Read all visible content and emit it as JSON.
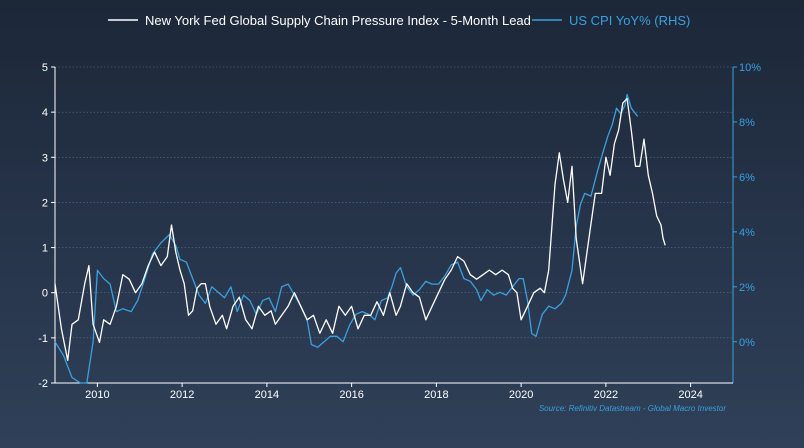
{
  "chart_data": {
    "type": "line",
    "legend": {
      "placement": "top",
      "gscpi_label": "New York Fed Global Supply Chain Pressure Index - 5-Month Lead",
      "cpi_label": "US CPI YoY% (RHS)"
    },
    "source": "Source: Refinitiv Datastream - Global Macro Investor",
    "colors": {
      "gscpi": "#ffffff",
      "cpi": "#3aa0e0",
      "grid": "#5a6f8c"
    },
    "x_range": [
      2009.0,
      2025.0
    ],
    "x_ticks": [
      "2010",
      "2012",
      "2014",
      "2016",
      "2018",
      "2020",
      "2022",
      "2024"
    ],
    "y_left": {
      "range": [
        -2,
        5
      ],
      "ticks": [
        "-2",
        "-1",
        "0",
        "1",
        "2",
        "3",
        "4",
        "5"
      ]
    },
    "y_right": {
      "range": [
        -1.5,
        10
      ],
      "ticks": [
        "0%",
        "2%",
        "4%",
        "6%",
        "8%",
        "10%"
      ]
    },
    "grid": true,
    "series": [
      {
        "name": "New York Fed Global Supply Chain Pressure Index - 5-Month Lead",
        "axis": "left",
        "points": [
          [
            2009.0,
            0.2
          ],
          [
            2009.15,
            -0.8
          ],
          [
            2009.3,
            -1.5
          ],
          [
            2009.4,
            -0.7
          ],
          [
            2009.55,
            -0.6
          ],
          [
            2009.7,
            0.2
          ],
          [
            2009.8,
            0.6
          ],
          [
            2009.9,
            -0.7
          ],
          [
            2010.05,
            -1.1
          ],
          [
            2010.15,
            -0.6
          ],
          [
            2010.3,
            -0.7
          ],
          [
            2010.45,
            -0.3
          ],
          [
            2010.6,
            0.4
          ],
          [
            2010.75,
            0.3
          ],
          [
            2010.9,
            0.0
          ],
          [
            2011.05,
            0.2
          ],
          [
            2011.2,
            0.6
          ],
          [
            2011.35,
            0.9
          ],
          [
            2011.5,
            0.6
          ],
          [
            2011.65,
            0.8
          ],
          [
            2011.75,
            1.5
          ],
          [
            2011.85,
            0.9
          ],
          [
            2011.95,
            0.5
          ],
          [
            2012.05,
            0.2
          ],
          [
            2012.15,
            -0.5
          ],
          [
            2012.25,
            -0.4
          ],
          [
            2012.35,
            0.1
          ],
          [
            2012.45,
            0.2
          ],
          [
            2012.55,
            0.2
          ],
          [
            2012.65,
            -0.3
          ],
          [
            2012.8,
            -0.7
          ],
          [
            2012.95,
            -0.5
          ],
          [
            2013.05,
            -0.8
          ],
          [
            2013.2,
            -0.3
          ],
          [
            2013.35,
            -0.1
          ],
          [
            2013.5,
            -0.6
          ],
          [
            2013.65,
            -0.8
          ],
          [
            2013.8,
            -0.3
          ],
          [
            2013.95,
            -0.5
          ],
          [
            2014.1,
            -0.4
          ],
          [
            2014.2,
            -0.7
          ],
          [
            2014.35,
            -0.5
          ],
          [
            2014.5,
            -0.3
          ],
          [
            2014.65,
            0.0
          ],
          [
            2014.8,
            -0.3
          ],
          [
            2014.95,
            -0.6
          ],
          [
            2015.1,
            -0.5
          ],
          [
            2015.25,
            -0.9
          ],
          [
            2015.4,
            -0.6
          ],
          [
            2015.55,
            -0.9
          ],
          [
            2015.7,
            -0.3
          ],
          [
            2015.85,
            -0.5
          ],
          [
            2016.0,
            -0.3
          ],
          [
            2016.15,
            -0.8
          ],
          [
            2016.3,
            -0.5
          ],
          [
            2016.45,
            -0.5
          ],
          [
            2016.6,
            -0.2
          ],
          [
            2016.75,
            -0.5
          ],
          [
            2016.9,
            0.0
          ],
          [
            2017.05,
            -0.5
          ],
          [
            2017.15,
            -0.3
          ],
          [
            2017.3,
            0.2
          ],
          [
            2017.45,
            0.0
          ],
          [
            2017.6,
            -0.1
          ],
          [
            2017.75,
            -0.6
          ],
          [
            2017.9,
            -0.3
          ],
          [
            2018.05,
            0.0
          ],
          [
            2018.2,
            0.3
          ],
          [
            2018.35,
            0.5
          ],
          [
            2018.5,
            0.8
          ],
          [
            2018.65,
            0.7
          ],
          [
            2018.8,
            0.4
          ],
          [
            2018.95,
            0.3
          ],
          [
            2019.1,
            0.4
          ],
          [
            2019.25,
            0.5
          ],
          [
            2019.4,
            0.4
          ],
          [
            2019.55,
            0.5
          ],
          [
            2019.7,
            0.4
          ],
          [
            2019.8,
            0.1
          ],
          [
            2019.9,
            0.0
          ],
          [
            2020.0,
            -0.6
          ],
          [
            2020.15,
            -0.3
          ],
          [
            2020.3,
            0.0
          ],
          [
            2020.45,
            0.1
          ],
          [
            2020.55,
            0.0
          ],
          [
            2020.65,
            0.5
          ],
          [
            2020.8,
            2.4
          ],
          [
            2020.9,
            3.1
          ],
          [
            2021.0,
            2.5
          ],
          [
            2021.1,
            2.0
          ],
          [
            2021.2,
            2.8
          ],
          [
            2021.3,
            1.2
          ],
          [
            2021.45,
            0.2
          ],
          [
            2021.6,
            1.2
          ],
          [
            2021.75,
            2.2
          ],
          [
            2021.9,
            2.2
          ],
          [
            2022.0,
            3.0
          ],
          [
            2022.1,
            2.6
          ],
          [
            2022.2,
            3.3
          ],
          [
            2022.3,
            3.6
          ],
          [
            2022.4,
            4.2
          ],
          [
            2022.5,
            4.3
          ],
          [
            2022.6,
            3.6
          ],
          [
            2022.7,
            2.8
          ],
          [
            2022.8,
            2.8
          ],
          [
            2022.9,
            3.4
          ],
          [
            2023.0,
            2.6
          ],
          [
            2023.1,
            2.2
          ],
          [
            2023.2,
            1.7
          ],
          [
            2023.3,
            1.5
          ],
          [
            2023.35,
            1.2
          ],
          [
            2023.4,
            1.05
          ]
        ]
      },
      {
        "name": "US CPI YoY% (RHS)",
        "axis": "right",
        "points": [
          [
            2009.0,
            0.0
          ],
          [
            2009.2,
            -0.5
          ],
          [
            2009.4,
            -1.3
          ],
          [
            2009.6,
            -2.0
          ],
          [
            2009.75,
            -1.5
          ],
          [
            2009.9,
            0.0
          ],
          [
            2010.0,
            2.6
          ],
          [
            2010.15,
            2.3
          ],
          [
            2010.3,
            2.1
          ],
          [
            2010.45,
            1.1
          ],
          [
            2010.6,
            1.2
          ],
          [
            2010.8,
            1.1
          ],
          [
            2010.95,
            1.5
          ],
          [
            2011.1,
            2.2
          ],
          [
            2011.3,
            3.2
          ],
          [
            2011.5,
            3.6
          ],
          [
            2011.7,
            3.9
          ],
          [
            2011.85,
            3.5
          ],
          [
            2011.95,
            3.0
          ],
          [
            2012.1,
            2.9
          ],
          [
            2012.25,
            2.3
          ],
          [
            2012.4,
            1.7
          ],
          [
            2012.55,
            1.4
          ],
          [
            2012.7,
            2.0
          ],
          [
            2012.85,
            1.8
          ],
          [
            2013.0,
            1.6
          ],
          [
            2013.15,
            2.0
          ],
          [
            2013.3,
            1.1
          ],
          [
            2013.45,
            1.7
          ],
          [
            2013.6,
            1.5
          ],
          [
            2013.75,
            1.0
          ],
          [
            2013.9,
            1.5
          ],
          [
            2014.05,
            1.6
          ],
          [
            2014.2,
            1.1
          ],
          [
            2014.35,
            2.0
          ],
          [
            2014.5,
            2.1
          ],
          [
            2014.65,
            1.7
          ],
          [
            2014.8,
            1.3
          ],
          [
            2014.95,
            0.8
          ],
          [
            2015.05,
            -0.1
          ],
          [
            2015.2,
            -0.2
          ],
          [
            2015.35,
            0.0
          ],
          [
            2015.5,
            0.2
          ],
          [
            2015.65,
            0.2
          ],
          [
            2015.8,
            0.0
          ],
          [
            2015.95,
            0.6
          ],
          [
            2016.1,
            1.0
          ],
          [
            2016.25,
            1.1
          ],
          [
            2016.4,
            1.0
          ],
          [
            2016.55,
            0.8
          ],
          [
            2016.7,
            1.5
          ],
          [
            2016.85,
            1.6
          ],
          [
            2016.95,
            2.0
          ],
          [
            2017.05,
            2.5
          ],
          [
            2017.15,
            2.7
          ],
          [
            2017.3,
            2.0
          ],
          [
            2017.45,
            1.7
          ],
          [
            2017.6,
            1.9
          ],
          [
            2017.75,
            2.2
          ],
          [
            2017.9,
            2.1
          ],
          [
            2018.05,
            2.1
          ],
          [
            2018.2,
            2.4
          ],
          [
            2018.35,
            2.8
          ],
          [
            2018.5,
            2.9
          ],
          [
            2018.65,
            2.3
          ],
          [
            2018.8,
            2.2
          ],
          [
            2018.95,
            1.9
          ],
          [
            2019.05,
            1.5
          ],
          [
            2019.2,
            1.9
          ],
          [
            2019.35,
            1.7
          ],
          [
            2019.5,
            1.8
          ],
          [
            2019.65,
            1.7
          ],
          [
            2019.8,
            2.0
          ],
          [
            2019.95,
            2.3
          ],
          [
            2020.05,
            2.3
          ],
          [
            2020.15,
            1.5
          ],
          [
            2020.25,
            0.3
          ],
          [
            2020.35,
            0.2
          ],
          [
            2020.5,
            1.0
          ],
          [
            2020.65,
            1.3
          ],
          [
            2020.8,
            1.2
          ],
          [
            2020.95,
            1.4
          ],
          [
            2021.05,
            1.7
          ],
          [
            2021.2,
            2.6
          ],
          [
            2021.3,
            4.2
          ],
          [
            2021.4,
            5.0
          ],
          [
            2021.5,
            5.4
          ],
          [
            2021.65,
            5.3
          ],
          [
            2021.8,
            6.2
          ],
          [
            2021.95,
            7.0
          ],
          [
            2022.05,
            7.5
          ],
          [
            2022.15,
            7.9
          ],
          [
            2022.25,
            8.5
          ],
          [
            2022.35,
            8.3
          ],
          [
            2022.45,
            8.6
          ],
          [
            2022.5,
            9.0
          ],
          [
            2022.6,
            8.5
          ],
          [
            2022.7,
            8.3
          ],
          [
            2022.75,
            8.2
          ]
        ]
      }
    ]
  }
}
